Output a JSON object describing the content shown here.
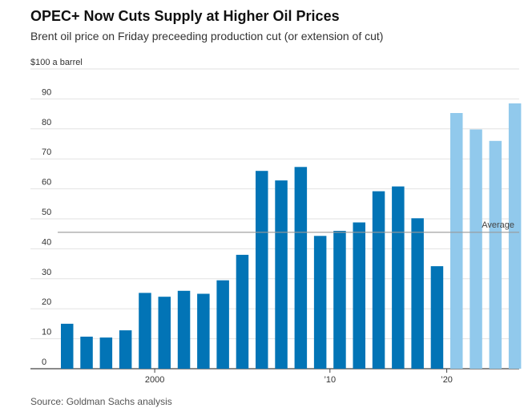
{
  "title": "OPEC+ Now Cuts Supply at Higher Oil Prices",
  "subtitle": "Brent oil price on Friday preceeding production cut (or extension of cut)",
  "source": "Source: Goldman Sachs analysis",
  "chart_data": {
    "type": "bar",
    "unit_label": "$100 a barrel",
    "ylim": [
      0,
      100
    ],
    "yticks": [
      0,
      10,
      20,
      30,
      40,
      50,
      60,
      70,
      80,
      90
    ],
    "x_tick_labels": [
      {
        "label": "2000",
        "after_bar": 4
      },
      {
        "label": "’10",
        "after_bar": 13
      },
      {
        "label": "’20",
        "after_bar": 19
      }
    ],
    "values": [
      15,
      10.7,
      10.4,
      12.8,
      25.3,
      24,
      26,
      25,
      29.5,
      38,
      66,
      62.8,
      67.3,
      44.3,
      46,
      48.8,
      59.2,
      60.8,
      50.2,
      34.2,
      85.3,
      79.8,
      76,
      88.5
    ],
    "highlight_from_index": 20,
    "colors": {
      "primary": "#0274b6",
      "highlight": "#91c9ec",
      "average_line": "#999999",
      "grid": "#e2e2e2",
      "axis": "#444444"
    },
    "average": {
      "label": "Average",
      "value": 45.5
    },
    "grid": true
  }
}
